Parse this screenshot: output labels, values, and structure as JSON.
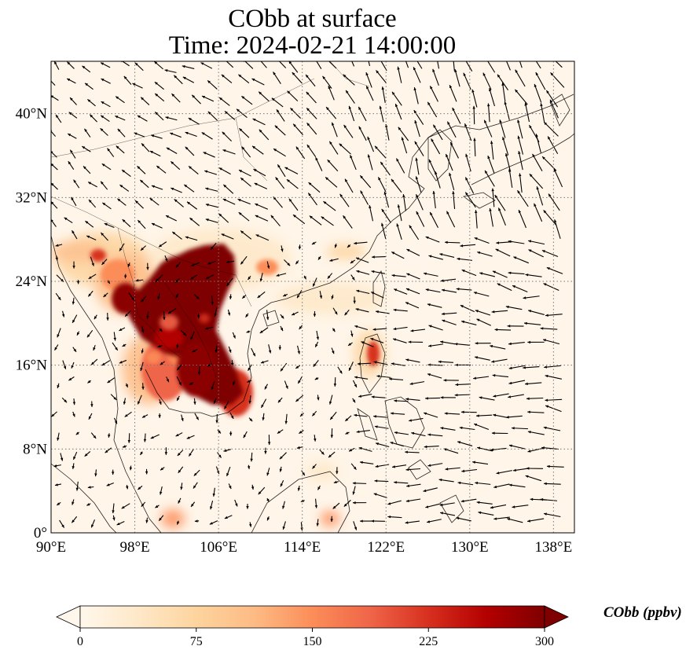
{
  "title": {
    "line1": "CObb at surface",
    "line2": "Time: 2024-02-21 14:00:00"
  },
  "map": {
    "lon_range": [
      90,
      140
    ],
    "lat_range": [
      0,
      45
    ],
    "lon_ticks": [
      {
        "value": 90,
        "label": "90°E"
      },
      {
        "value": 98,
        "label": "98°E"
      },
      {
        "value": 106,
        "label": "106°E"
      },
      {
        "value": 114,
        "label": "114°E"
      },
      {
        "value": 122,
        "label": "122°E"
      },
      {
        "value": 130,
        "label": "130°E"
      },
      {
        "value": 138,
        "label": "138°E"
      }
    ],
    "lat_ticks": [
      {
        "value": 0,
        "label": "0°"
      },
      {
        "value": 8,
        "label": "8°N"
      },
      {
        "value": 16,
        "label": "16°N"
      },
      {
        "value": 24,
        "label": "24°N"
      },
      {
        "value": 32,
        "label": "32°N"
      },
      {
        "value": 40,
        "label": "40°N"
      }
    ],
    "gridlines": "dotted",
    "field": "CObb concentration (ppbv)",
    "high_concentration_region": "Indochina / southern China",
    "overlay": "wind vectors (black arrows)"
  },
  "colorbar": {
    "label": "CObb (ppbv)",
    "min": 0,
    "max": 300,
    "ticks": [
      {
        "value": 0,
        "label": "0"
      },
      {
        "value": 75,
        "label": "75"
      },
      {
        "value": 150,
        "label": "150"
      },
      {
        "value": 225,
        "label": "225"
      },
      {
        "value": 300,
        "label": "300"
      }
    ],
    "colormap": "OrRd",
    "colors": [
      "#fff7ec",
      "#fee8c8",
      "#fdd49e",
      "#fdbb84",
      "#fc8d59",
      "#ef6548",
      "#d7301f",
      "#b30000",
      "#7f0000"
    ],
    "extend": "both"
  }
}
